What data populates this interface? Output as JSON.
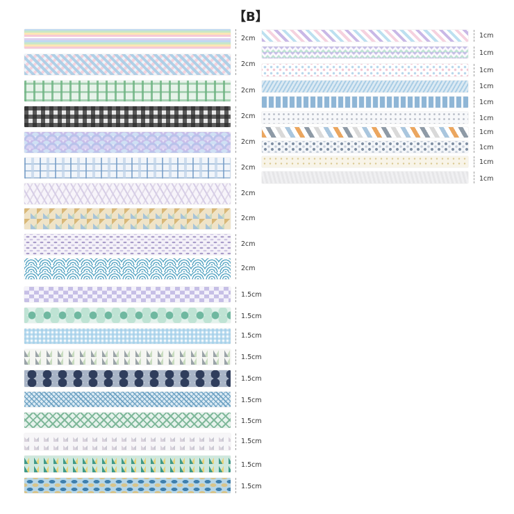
{
  "title": "【B】",
  "left_column": [
    {
      "label": "2cm",
      "pattern": "pastel-rainbow-stripes"
    },
    {
      "label": "2cm",
      "pattern": "blue-pink-plaid"
    },
    {
      "label": "2cm",
      "pattern": "green-plaid"
    },
    {
      "label": "2cm",
      "pattern": "black-gingham"
    },
    {
      "label": "2cm",
      "pattern": "purple-scales"
    },
    {
      "label": "2cm",
      "pattern": "blue-tartan"
    },
    {
      "label": "2cm",
      "pattern": "lavender-feathers"
    },
    {
      "label": "2cm",
      "pattern": "ochre-geometric"
    },
    {
      "label": "2cm",
      "pattern": "lilac-leaves"
    },
    {
      "label": "2cm",
      "pattern": "blue-seigaiha-waves"
    },
    {
      "label": "1.5cm",
      "pattern": "lilac-checker"
    },
    {
      "label": "1.5cm",
      "pattern": "mint-hexagons"
    },
    {
      "label": "1.5cm",
      "pattern": "light-blue-gingham"
    },
    {
      "label": "1.5cm",
      "pattern": "grey-triangles"
    },
    {
      "label": "1.5cm",
      "pattern": "navy-circles"
    },
    {
      "label": "1.5cm",
      "pattern": "blue-herringbone"
    },
    {
      "label": "1.5cm",
      "pattern": "green-lattice"
    },
    {
      "label": "1.5cm",
      "pattern": "grey-diamonds"
    },
    {
      "label": "1.5cm",
      "pattern": "teal-yellow-triangles"
    },
    {
      "label": "1.5cm",
      "pattern": "blue-ikat"
    }
  ],
  "right_column": [
    {
      "label": "1cm",
      "pattern": "pastel-diagonal-stripes"
    },
    {
      "label": "1cm",
      "pattern": "purple-zigzag"
    },
    {
      "label": "1cm",
      "pattern": "pastel-dots"
    },
    {
      "label": "1cm",
      "pattern": "blue-diagonal-lines"
    },
    {
      "label": "1cm",
      "pattern": "blue-dashes"
    },
    {
      "label": "1cm",
      "pattern": "grey-crosses"
    },
    {
      "label": "1cm",
      "pattern": "orange-grey-diagonal-blocks"
    },
    {
      "label": "1cm",
      "pattern": "grey-flowers"
    },
    {
      "label": "1cm",
      "pattern": "cream-speckles"
    },
    {
      "label": "1cm",
      "pattern": "light-grey-texture"
    }
  ],
  "colors": {
    "blue": "#a9cde6",
    "pink": "#f2c8d4",
    "green": "#9ccfa8",
    "black": "#3a3a3a",
    "purple": "#c6bfe6",
    "teal": "#7fc4cf",
    "ochre": "#d9b878",
    "grey": "#c8c8c8",
    "navy": "#2f3d5c",
    "mint": "#a8dcc4",
    "orange": "#eba65f",
    "cream": "#f3ecda"
  }
}
